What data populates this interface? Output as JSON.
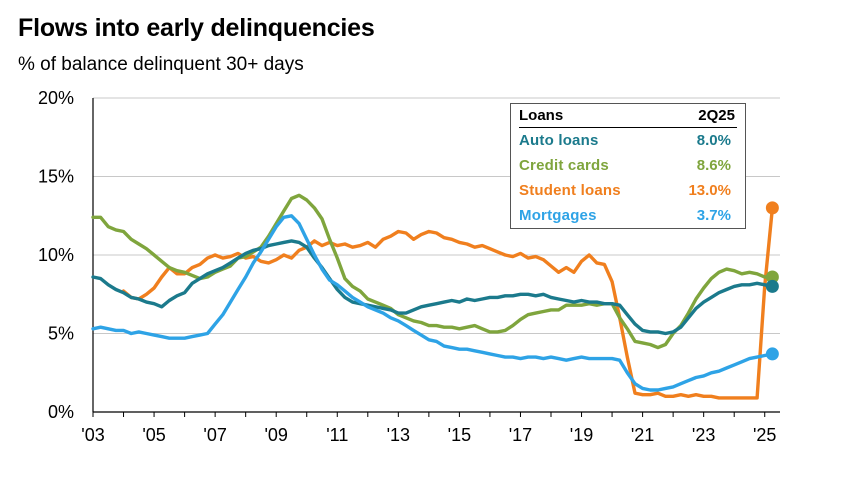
{
  "chart_data": {
    "type": "line",
    "title": "Flows into early delinquencies",
    "subtitle": "% of balance delinquent 30+ days",
    "ylim": [
      0,
      20
    ],
    "yticks": [
      "0%",
      "5%",
      "10%",
      "15%",
      "20%"
    ],
    "xlim": [
      2003,
      2025.5
    ],
    "xticks": [
      "'03",
      "'05",
      "'07",
      "'09",
      "'11",
      "'13",
      "'15",
      "'17",
      "'19",
      "'21",
      "'23",
      "'25"
    ],
    "legend": {
      "header_label": "Loans",
      "header_value": "2Q25",
      "entries": [
        {
          "name": "Auto loans",
          "value": "8.0%",
          "color": "#1b7a8c"
        },
        {
          "name": "Credit cards",
          "value": "8.6%",
          "color": "#7fa53d"
        },
        {
          "name": "Student loans",
          "value": "13.0%",
          "color": "#f07f1e"
        },
        {
          "name": "Mortgages",
          "value": "3.7%",
          "color": "#2ea3e6"
        }
      ]
    },
    "series": [
      {
        "name": "Student loans",
        "color": "#f07f1e",
        "x": [
          2004.0,
          2004.25,
          2004.5,
          2004.75,
          2005.0,
          2005.25,
          2005.5,
          2005.75,
          2006.0,
          2006.25,
          2006.5,
          2006.75,
          2007.0,
          2007.25,
          2007.5,
          2007.75,
          2008.0,
          2008.25,
          2008.5,
          2008.75,
          2009.0,
          2009.25,
          2009.5,
          2009.75,
          2010.0,
          2010.25,
          2010.5,
          2010.75,
          2011.0,
          2011.25,
          2011.5,
          2011.75,
          2012.0,
          2012.25,
          2012.5,
          2012.75,
          2013.0,
          2013.25,
          2013.5,
          2013.75,
          2014.0,
          2014.25,
          2014.5,
          2014.75,
          2015.0,
          2015.25,
          2015.5,
          2015.75,
          2016.0,
          2016.25,
          2016.5,
          2016.75,
          2017.0,
          2017.25,
          2017.5,
          2017.75,
          2018.0,
          2018.25,
          2018.5,
          2018.75,
          2019.0,
          2019.25,
          2019.5,
          2019.75,
          2020.0,
          2020.25,
          2020.5,
          2020.75,
          2021.0,
          2021.25,
          2021.5,
          2021.75,
          2022.0,
          2022.25,
          2022.5,
          2022.75,
          2023.0,
          2023.25,
          2023.5,
          2023.75,
          2024.0,
          2024.25,
          2024.5,
          2024.75,
          2025.0,
          2025.25
        ],
        "y": [
          7.7,
          7.3,
          7.2,
          7.5,
          7.9,
          8.6,
          9.2,
          8.8,
          8.8,
          9.2,
          9.4,
          9.8,
          10.0,
          9.8,
          9.9,
          10.1,
          9.8,
          9.9,
          9.6,
          9.5,
          9.7,
          10.0,
          9.8,
          10.3,
          10.5,
          10.9,
          10.6,
          10.8,
          10.6,
          10.7,
          10.5,
          10.6,
          10.8,
          10.5,
          11.0,
          11.2,
          11.5,
          11.4,
          11.0,
          11.3,
          11.5,
          11.4,
          11.1,
          11.0,
          10.8,
          10.7,
          10.5,
          10.6,
          10.4,
          10.2,
          10.0,
          9.9,
          10.1,
          9.8,
          9.9,
          9.7,
          9.3,
          8.9,
          9.2,
          8.9,
          9.6,
          10.0,
          9.5,
          9.4,
          8.3,
          6.0,
          3.5,
          1.2,
          1.1,
          1.1,
          1.2,
          1.0,
          1.0,
          1.1,
          1.0,
          1.1,
          1.0,
          1.0,
          0.9,
          0.9,
          0.9,
          0.9,
          0.9,
          0.9,
          8.0,
          13.0
        ]
      },
      {
        "name": "Credit cards",
        "color": "#7fa53d",
        "x": [
          2003.0,
          2003.25,
          2003.5,
          2003.75,
          2004.0,
          2004.25,
          2004.5,
          2004.75,
          2005.0,
          2005.25,
          2005.5,
          2005.75,
          2006.0,
          2006.25,
          2006.5,
          2006.75,
          2007.0,
          2007.25,
          2007.5,
          2007.75,
          2008.0,
          2008.25,
          2008.5,
          2008.75,
          2009.0,
          2009.25,
          2009.5,
          2009.75,
          2010.0,
          2010.25,
          2010.5,
          2010.75,
          2011.0,
          2011.25,
          2011.5,
          2011.75,
          2012.0,
          2012.25,
          2012.5,
          2012.75,
          2013.0,
          2013.25,
          2013.5,
          2013.75,
          2014.0,
          2014.25,
          2014.5,
          2014.75,
          2015.0,
          2015.25,
          2015.5,
          2015.75,
          2016.0,
          2016.25,
          2016.5,
          2016.75,
          2017.0,
          2017.25,
          2017.5,
          2017.75,
          2018.0,
          2018.25,
          2018.5,
          2018.75,
          2019.0,
          2019.25,
          2019.5,
          2019.75,
          2020.0,
          2020.25,
          2020.5,
          2020.75,
          2021.0,
          2021.25,
          2021.5,
          2021.75,
          2022.0,
          2022.25,
          2022.5,
          2022.75,
          2023.0,
          2023.25,
          2023.5,
          2023.75,
          2024.0,
          2024.25,
          2024.5,
          2024.75,
          2025.0,
          2025.25
        ],
        "y": [
          12.4,
          12.4,
          11.8,
          11.6,
          11.5,
          11.0,
          10.7,
          10.4,
          10.0,
          9.6,
          9.2,
          9.0,
          8.9,
          8.7,
          8.5,
          8.6,
          8.9,
          9.1,
          9.3,
          9.8,
          9.9,
          10.2,
          10.5,
          11.2,
          12.0,
          12.8,
          13.6,
          13.8,
          13.5,
          13.0,
          12.3,
          11.0,
          9.8,
          8.5,
          8.0,
          7.7,
          7.2,
          7.0,
          6.8,
          6.6,
          6.2,
          6.0,
          5.8,
          5.7,
          5.5,
          5.5,
          5.4,
          5.4,
          5.3,
          5.4,
          5.5,
          5.3,
          5.1,
          5.1,
          5.2,
          5.5,
          5.9,
          6.2,
          6.3,
          6.4,
          6.5,
          6.5,
          6.8,
          6.8,
          6.8,
          6.9,
          6.8,
          6.9,
          6.9,
          6.0,
          5.3,
          4.5,
          4.4,
          4.3,
          4.1,
          4.3,
          5.0,
          5.5,
          6.3,
          7.2,
          7.9,
          8.5,
          8.9,
          9.1,
          9.0,
          8.8,
          8.9,
          8.8,
          8.6,
          8.6
        ]
      },
      {
        "name": "Auto loans",
        "color": "#1b7a8c",
        "x": [
          2003.0,
          2003.25,
          2003.5,
          2003.75,
          2004.0,
          2004.25,
          2004.5,
          2004.75,
          2005.0,
          2005.25,
          2005.5,
          2005.75,
          2006.0,
          2006.25,
          2006.5,
          2006.75,
          2007.0,
          2007.25,
          2007.5,
          2007.75,
          2008.0,
          2008.25,
          2008.5,
          2008.75,
          2009.0,
          2009.25,
          2009.5,
          2009.75,
          2010.0,
          2010.25,
          2010.5,
          2010.75,
          2011.0,
          2011.25,
          2011.5,
          2011.75,
          2012.0,
          2012.25,
          2012.5,
          2012.75,
          2013.0,
          2013.25,
          2013.5,
          2013.75,
          2014.0,
          2014.25,
          2014.5,
          2014.75,
          2015.0,
          2015.25,
          2015.5,
          2015.75,
          2016.0,
          2016.25,
          2016.5,
          2016.75,
          2017.0,
          2017.25,
          2017.5,
          2017.75,
          2018.0,
          2018.25,
          2018.5,
          2018.75,
          2019.0,
          2019.25,
          2019.5,
          2019.75,
          2020.0,
          2020.25,
          2020.5,
          2020.75,
          2021.0,
          2021.25,
          2021.5,
          2021.75,
          2022.0,
          2022.25,
          2022.5,
          2022.75,
          2023.0,
          2023.25,
          2023.5,
          2023.75,
          2024.0,
          2024.25,
          2024.5,
          2024.75,
          2025.0,
          2025.25
        ],
        "y": [
          8.6,
          8.5,
          8.1,
          7.8,
          7.6,
          7.3,
          7.2,
          7.0,
          6.9,
          6.7,
          7.1,
          7.4,
          7.6,
          8.2,
          8.5,
          8.8,
          9.0,
          9.2,
          9.5,
          9.8,
          10.1,
          10.3,
          10.4,
          10.6,
          10.7,
          10.8,
          10.9,
          10.8,
          10.5,
          9.8,
          9.2,
          8.5,
          7.8,
          7.3,
          7.0,
          6.9,
          6.8,
          6.7,
          6.6,
          6.5,
          6.3,
          6.3,
          6.5,
          6.7,
          6.8,
          6.9,
          7.0,
          7.1,
          7.0,
          7.2,
          7.1,
          7.2,
          7.3,
          7.3,
          7.4,
          7.4,
          7.5,
          7.5,
          7.4,
          7.5,
          7.3,
          7.2,
          7.1,
          7.0,
          7.1,
          7.0,
          7.0,
          6.9,
          6.9,
          6.8,
          6.2,
          5.6,
          5.2,
          5.1,
          5.1,
          5.0,
          5.1,
          5.4,
          6.0,
          6.6,
          7.0,
          7.3,
          7.6,
          7.8,
          8.0,
          8.1,
          8.1,
          8.2,
          8.1,
          8.0
        ]
      },
      {
        "name": "Mortgages",
        "color": "#2ea3e6",
        "x": [
          2003.0,
          2003.25,
          2003.5,
          2003.75,
          2004.0,
          2004.25,
          2004.5,
          2004.75,
          2005.0,
          2005.25,
          2005.5,
          2005.75,
          2006.0,
          2006.25,
          2006.5,
          2006.75,
          2007.0,
          2007.25,
          2007.5,
          2007.75,
          2008.0,
          2008.25,
          2008.5,
          2008.75,
          2009.0,
          2009.25,
          2009.5,
          2009.75,
          2010.0,
          2010.25,
          2010.5,
          2010.75,
          2011.0,
          2011.25,
          2011.5,
          2011.75,
          2012.0,
          2012.25,
          2012.5,
          2012.75,
          2013.0,
          2013.25,
          2013.5,
          2013.75,
          2014.0,
          2014.25,
          2014.5,
          2014.75,
          2015.0,
          2015.25,
          2015.5,
          2015.75,
          2016.0,
          2016.25,
          2016.5,
          2016.75,
          2017.0,
          2017.25,
          2017.5,
          2017.75,
          2018.0,
          2018.25,
          2018.5,
          2018.75,
          2019.0,
          2019.25,
          2019.5,
          2019.75,
          2020.0,
          2020.25,
          2020.5,
          2020.75,
          2021.0,
          2021.25,
          2021.5,
          2021.75,
          2022.0,
          2022.25,
          2022.5,
          2022.75,
          2023.0,
          2023.25,
          2023.5,
          2023.75,
          2024.0,
          2024.25,
          2024.5,
          2024.75,
          2025.0,
          2025.25
        ],
        "y": [
          5.3,
          5.4,
          5.3,
          5.2,
          5.2,
          5.0,
          5.1,
          5.0,
          4.9,
          4.8,
          4.7,
          4.7,
          4.7,
          4.8,
          4.9,
          5.0,
          5.6,
          6.2,
          7.0,
          7.8,
          8.6,
          9.5,
          10.2,
          11.0,
          11.8,
          12.4,
          12.5,
          12.0,
          11.0,
          10.0,
          9.1,
          8.4,
          8.1,
          7.7,
          7.3,
          7.0,
          6.7,
          6.5,
          6.3,
          6.0,
          5.8,
          5.5,
          5.2,
          4.9,
          4.6,
          4.5,
          4.2,
          4.1,
          4.0,
          4.0,
          3.9,
          3.8,
          3.7,
          3.6,
          3.5,
          3.5,
          3.4,
          3.5,
          3.5,
          3.4,
          3.5,
          3.4,
          3.3,
          3.4,
          3.5,
          3.4,
          3.4,
          3.4,
          3.4,
          3.3,
          2.5,
          1.8,
          1.5,
          1.4,
          1.4,
          1.5,
          1.6,
          1.8,
          2.0,
          2.2,
          2.3,
          2.5,
          2.6,
          2.8,
          3.0,
          3.2,
          3.4,
          3.5,
          3.6,
          3.7
        ]
      }
    ]
  }
}
